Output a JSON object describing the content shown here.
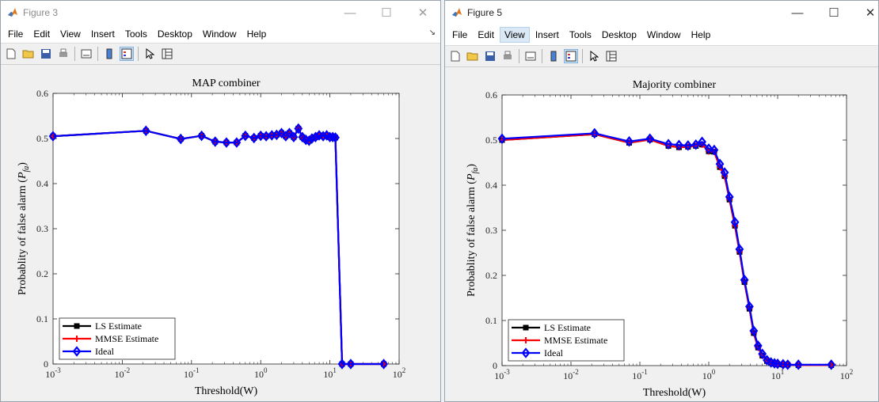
{
  "figures": [
    {
      "window_title": "Figure 3",
      "menu": [
        "File",
        "Edit",
        "View",
        "Insert",
        "Tools",
        "Desktop",
        "Window",
        "Help"
      ],
      "active_menu": "",
      "controls": {
        "minimize": "—",
        "maximize": "☐",
        "close": "✕"
      },
      "dock_glyph": "↘"
    },
    {
      "window_title": "Figure 5",
      "menu": [
        "File",
        "Edit",
        "View",
        "Insert",
        "Tools",
        "Desktop",
        "Window",
        "Help"
      ],
      "active_menu": "View",
      "controls": {
        "minimize": "—",
        "maximize": "☐",
        "close": "✕"
      }
    }
  ],
  "chart_data": [
    {
      "type": "line",
      "title": "MAP combiner",
      "xlabel": "Threshold(W)",
      "ylabel": "Probablity of false alarm (P_fa)",
      "xscale": "log",
      "xlim": [
        0.001,
        100
      ],
      "ylim": [
        0,
        0.6
      ],
      "xticks": [
        "10^-3",
        "10^-2",
        "10^-1",
        "10^0",
        "10^1",
        "10^2"
      ],
      "yticks": [
        "0",
        "0.1",
        "0.2",
        "0.3",
        "0.4",
        "0.5",
        "0.6"
      ],
      "legend": [
        "LS Estimate",
        "MMSE Estimate",
        "Ideal"
      ],
      "legend_position": "lower-left",
      "series": [
        {
          "name": "LS Estimate",
          "color": "#000000",
          "marker": "square",
          "x": [
            0.001,
            0.022,
            0.07,
            0.14,
            0.22,
            0.32,
            0.45,
            0.6,
            0.8,
            1.0,
            1.2,
            1.45,
            1.7,
            2.0,
            2.3,
            2.6,
            3.0,
            3.5,
            4.0,
            4.5,
            5.0,
            5.5,
            6.2,
            7.0,
            8.0,
            9.0,
            10.0,
            11.0,
            12.0,
            15.0,
            20.0,
            60.0
          ],
          "y": [
            0.505,
            0.517,
            0.499,
            0.506,
            0.493,
            0.491,
            0.491,
            0.506,
            0.501,
            0.506,
            0.505,
            0.507,
            0.508,
            0.512,
            0.505,
            0.512,
            0.503,
            0.522,
            0.503,
            0.497,
            0.495,
            0.5,
            0.503,
            0.507,
            0.505,
            0.507,
            0.503,
            0.503,
            0.502,
            0.0,
            0.0,
            0.0
          ]
        },
        {
          "name": "MMSE Estimate",
          "color": "#ff0000",
          "marker": "plus",
          "x": [
            0.001,
            0.022,
            0.07,
            0.14,
            0.22,
            0.32,
            0.45,
            0.6,
            0.8,
            1.0,
            1.2,
            1.45,
            1.7,
            2.0,
            2.3,
            2.6,
            3.0,
            3.5,
            4.0,
            4.5,
            5.0,
            5.5,
            6.2,
            7.0,
            8.0,
            9.0,
            10.0,
            11.0,
            12.0,
            15.0,
            20.0,
            60.0
          ],
          "y": [
            0.505,
            0.517,
            0.499,
            0.506,
            0.493,
            0.491,
            0.491,
            0.506,
            0.501,
            0.506,
            0.505,
            0.507,
            0.508,
            0.512,
            0.505,
            0.512,
            0.503,
            0.522,
            0.503,
            0.497,
            0.495,
            0.5,
            0.503,
            0.507,
            0.505,
            0.507,
            0.503,
            0.503,
            0.502,
            0.0,
            0.0,
            0.0
          ]
        },
        {
          "name": "Ideal",
          "color": "#0000ff",
          "marker": "diamond",
          "x": [
            0.001,
            0.022,
            0.07,
            0.14,
            0.22,
            0.32,
            0.45,
            0.6,
            0.8,
            1.0,
            1.2,
            1.45,
            1.7,
            2.0,
            2.3,
            2.6,
            3.0,
            3.5,
            4.0,
            4.5,
            5.0,
            5.5,
            6.2,
            7.0,
            8.0,
            9.0,
            10.0,
            11.0,
            12.0,
            15.0,
            20.0,
            60.0
          ],
          "y": [
            0.505,
            0.517,
            0.499,
            0.506,
            0.493,
            0.491,
            0.491,
            0.506,
            0.501,
            0.506,
            0.505,
            0.507,
            0.508,
            0.512,
            0.505,
            0.512,
            0.503,
            0.522,
            0.503,
            0.497,
            0.495,
            0.5,
            0.503,
            0.507,
            0.505,
            0.507,
            0.503,
            0.503,
            0.502,
            0.0,
            0.0,
            0.0
          ]
        }
      ]
    },
    {
      "type": "line",
      "title": "Majority combiner",
      "xlabel": "Threshold(W)",
      "ylabel": "Probablity of false alarm (P_fa)",
      "xscale": "log",
      "xlim": [
        0.001,
        100
      ],
      "ylim": [
        0,
        0.6
      ],
      "xticks": [
        "10^-3",
        "10^-2",
        "10^-1",
        "10^0",
        "10^1",
        "10^2"
      ],
      "yticks": [
        "0",
        "0.1",
        "0.2",
        "0.3",
        "0.4",
        "0.5",
        "0.6"
      ],
      "legend": [
        "LS Estimate",
        "MMSE Estimate",
        "Ideal"
      ],
      "legend_position": "lower-left",
      "series": [
        {
          "name": "LS Estimate",
          "color": "#000000",
          "marker": "square",
          "x": [
            0.001,
            0.022,
            0.07,
            0.14,
            0.26,
            0.37,
            0.5,
            0.65,
            0.8,
            1.0,
            1.2,
            1.45,
            1.7,
            2.0,
            2.4,
            2.8,
            3.3,
            3.9,
            4.5,
            5.2,
            6.0,
            7.0,
            8.0,
            9.0,
            10.0,
            12.0,
            14.0,
            20.0,
            60.0
          ],
          "y": [
            0.5,
            0.513,
            0.494,
            0.501,
            0.487,
            0.484,
            0.485,
            0.487,
            0.49,
            0.475,
            0.474,
            0.44,
            0.42,
            0.368,
            0.31,
            0.252,
            0.185,
            0.126,
            0.072,
            0.04,
            0.022,
            0.01,
            0.006,
            0.004,
            0.003,
            0.002,
            0.002,
            0.001,
            0.001
          ]
        },
        {
          "name": "MMSE Estimate",
          "color": "#ff0000",
          "marker": "plus",
          "x": [
            0.001,
            0.022,
            0.07,
            0.14,
            0.26,
            0.37,
            0.5,
            0.65,
            0.8,
            1.0,
            1.2,
            1.45,
            1.7,
            2.0,
            2.4,
            2.8,
            3.3,
            3.9,
            4.5,
            5.2,
            6.0,
            7.0,
            8.0,
            9.0,
            10.0,
            12.0,
            14.0,
            20.0,
            60.0
          ],
          "y": [
            0.5,
            0.513,
            0.494,
            0.501,
            0.487,
            0.484,
            0.485,
            0.487,
            0.49,
            0.475,
            0.474,
            0.44,
            0.42,
            0.368,
            0.31,
            0.252,
            0.185,
            0.126,
            0.072,
            0.04,
            0.022,
            0.01,
            0.006,
            0.004,
            0.003,
            0.002,
            0.002,
            0.001,
            0.001
          ]
        },
        {
          "name": "Ideal",
          "color": "#0000ff",
          "marker": "diamond",
          "x": [
            0.001,
            0.022,
            0.07,
            0.14,
            0.26,
            0.37,
            0.5,
            0.65,
            0.8,
            1.0,
            1.2,
            1.45,
            1.7,
            2.0,
            2.4,
            2.8,
            3.3,
            3.9,
            4.5,
            5.2,
            6.0,
            7.0,
            8.0,
            9.0,
            10.0,
            12.0,
            14.0,
            20.0,
            60.0
          ],
          "y": [
            0.503,
            0.515,
            0.497,
            0.503,
            0.491,
            0.489,
            0.488,
            0.49,
            0.496,
            0.481,
            0.478,
            0.447,
            0.428,
            0.374,
            0.318,
            0.258,
            0.19,
            0.131,
            0.077,
            0.044,
            0.026,
            0.012,
            0.007,
            0.005,
            0.004,
            0.003,
            0.002,
            0.002,
            0.002
          ]
        }
      ]
    }
  ]
}
